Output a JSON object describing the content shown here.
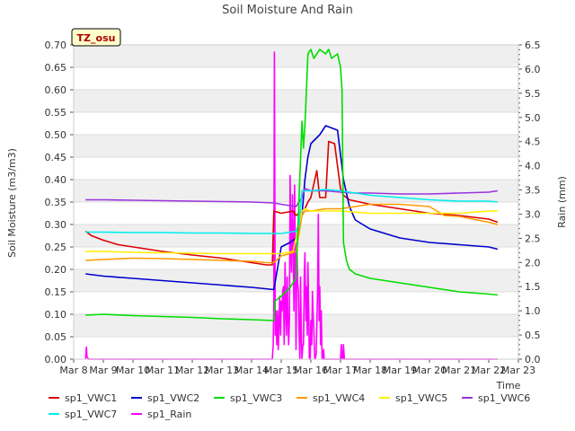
{
  "chart_data": {
    "type": "line",
    "title": "Soil Moisture And Rain",
    "site_label": "TZ_osu",
    "ylabel": "Soil Moisture (m3/m3)",
    "y2label": "Rain (mm)",
    "xlabel": "Time",
    "ylim": [
      0,
      0.7
    ],
    "y2lim": [
      0,
      6.5
    ],
    "xlim": [
      8,
      23
    ],
    "x_unit": "day of March",
    "x_ticks": [
      8,
      9,
      10,
      11,
      12,
      13,
      14,
      15,
      16,
      17,
      18,
      19,
      20,
      21,
      22,
      23
    ],
    "x_tick_labels": [
      "Mar 8",
      "Mar 9",
      "Mar 10",
      "Mar 11",
      "Mar 12",
      "Mar 13",
      "Mar 14",
      "Mar 15",
      "Mar 16",
      "Mar 17",
      "Mar 18",
      "Mar 19",
      "Mar 20",
      "Mar 21",
      "Mar 22",
      "Mar 23"
    ],
    "y_ticks": [
      0.0,
      0.05,
      0.1,
      0.15,
      0.2,
      0.25,
      0.3,
      0.35,
      0.4,
      0.45,
      0.5,
      0.55,
      0.6,
      0.65,
      0.7
    ],
    "y_tick_labels": [
      "0.00",
      "0.05",
      "0.10",
      "0.15",
      "0.20",
      "0.25",
      "0.30",
      "0.35",
      "0.40",
      "0.45",
      "0.50",
      "0.55",
      "0.60",
      "0.65",
      "0.70"
    ],
    "y2_ticks": [
      0.0,
      0.5,
      1.0,
      1.5,
      2.0,
      2.5,
      3.0,
      3.5,
      4.0,
      4.5,
      5.0,
      5.5,
      6.0,
      6.5
    ],
    "y2_tick_labels": [
      "0.0",
      "0.5",
      "1.0",
      "1.5",
      "2.0",
      "2.5",
      "3.0",
      "3.5",
      "4.0",
      "4.5",
      "5.0",
      "5.5",
      "6.0",
      "6.5"
    ],
    "grid": "horizontal bands",
    "legend_position": "bottom",
    "series": [
      {
        "name": "sp1_VWC1",
        "color": "#dd0000",
        "axis": "left",
        "x": [
          8.4,
          8.6,
          9.0,
          9.5,
          10.0,
          10.5,
          11.0,
          12.0,
          13.0,
          13.5,
          14.0,
          14.5,
          14.7,
          14.75,
          15.0,
          15.4,
          15.5,
          15.7,
          15.8,
          15.9,
          16.0,
          16.2,
          16.3,
          16.5,
          16.6,
          16.8,
          17.0,
          17.1,
          17.3,
          18.0,
          19.0,
          20.0,
          21.0,
          22.0,
          22.3
        ],
        "y": [
          0.285,
          0.275,
          0.265,
          0.255,
          0.25,
          0.245,
          0.24,
          0.232,
          0.225,
          0.22,
          0.215,
          0.21,
          0.21,
          0.33,
          0.325,
          0.33,
          0.32,
          0.33,
          0.335,
          0.35,
          0.36,
          0.42,
          0.36,
          0.36,
          0.485,
          0.48,
          0.38,
          0.365,
          0.355,
          0.345,
          0.335,
          0.325,
          0.32,
          0.312,
          0.305
        ]
      },
      {
        "name": "sp1_VWC2",
        "color": "#0000cc",
        "axis": "left",
        "x": [
          8.4,
          9.0,
          10.0,
          11.0,
          12.0,
          13.0,
          14.0,
          14.75,
          15.0,
          15.3,
          15.5,
          15.7,
          15.8,
          15.9,
          16.0,
          16.3,
          16.5,
          16.7,
          16.9,
          17.1,
          17.3,
          17.5,
          18.0,
          19.0,
          20.0,
          21.0,
          22.0,
          22.3
        ],
        "y": [
          0.19,
          0.185,
          0.18,
          0.175,
          0.17,
          0.165,
          0.16,
          0.155,
          0.25,
          0.26,
          0.27,
          0.32,
          0.4,
          0.45,
          0.48,
          0.5,
          0.52,
          0.515,
          0.51,
          0.4,
          0.34,
          0.31,
          0.29,
          0.27,
          0.26,
          0.255,
          0.25,
          0.245
        ]
      },
      {
        "name": "sp1_VWC3",
        "color": "#00dd00",
        "axis": "left",
        "x": [
          8.4,
          9.0,
          10.0,
          11.0,
          12.0,
          13.0,
          14.0,
          14.75,
          14.8,
          15.0,
          15.3,
          15.5,
          15.7,
          15.75,
          15.8,
          15.85,
          15.9,
          16.0,
          16.1,
          16.3,
          16.5,
          16.6,
          16.7,
          16.9,
          17.0,
          17.05,
          17.1,
          17.2,
          17.3,
          17.5,
          18.0,
          19.0,
          20.0,
          21.0,
          22.0,
          22.3
        ],
        "y": [
          0.098,
          0.1,
          0.097,
          0.095,
          0.093,
          0.09,
          0.088,
          0.086,
          0.13,
          0.14,
          0.16,
          0.18,
          0.53,
          0.47,
          0.52,
          0.6,
          0.68,
          0.69,
          0.67,
          0.69,
          0.68,
          0.69,
          0.67,
          0.68,
          0.65,
          0.6,
          0.26,
          0.22,
          0.2,
          0.19,
          0.18,
          0.17,
          0.16,
          0.15,
          0.145,
          0.143
        ]
      },
      {
        "name": "sp1_VWC4",
        "color": "#ff9900",
        "axis": "left",
        "x": [
          8.4,
          9.0,
          10.0,
          11.0,
          12.0,
          13.0,
          14.0,
          14.5,
          14.75,
          15.0,
          15.3,
          15.5,
          15.6,
          15.7,
          15.8,
          16.0,
          16.5,
          17.0,
          17.5,
          18.0,
          19.0,
          20.0,
          20.5,
          21.0,
          22.0,
          22.3
        ],
        "y": [
          0.22,
          0.222,
          0.225,
          0.224,
          0.222,
          0.22,
          0.218,
          0.215,
          0.215,
          0.23,
          0.235,
          0.24,
          0.28,
          0.32,
          0.33,
          0.33,
          0.335,
          0.335,
          0.34,
          0.345,
          0.345,
          0.34,
          0.32,
          0.318,
          0.305,
          0.3
        ]
      },
      {
        "name": "sp1_VWC5",
        "color": "#ffee00",
        "axis": "left",
        "x": [
          8.4,
          9.0,
          10.0,
          11.0,
          12.0,
          13.0,
          14.0,
          14.75,
          15.0,
          15.4,
          15.6,
          15.7,
          15.8,
          16.0,
          16.5,
          17.0,
          18.0,
          19.0,
          20.0,
          21.0,
          22.0,
          22.3
        ],
        "y": [
          0.24,
          0.24,
          0.238,
          0.237,
          0.236,
          0.235,
          0.235,
          0.235,
          0.235,
          0.24,
          0.3,
          0.33,
          0.335,
          0.33,
          0.33,
          0.33,
          0.325,
          0.325,
          0.325,
          0.325,
          0.33,
          0.33
        ]
      },
      {
        "name": "sp1_VWC6",
        "color": "#9933dd",
        "axis": "left",
        "x": [
          8.4,
          9.0,
          10.0,
          11.0,
          12.0,
          13.0,
          14.0,
          14.75,
          15.0,
          15.5,
          15.7,
          15.8,
          16.0,
          16.5,
          17.0,
          17.5,
          18.0,
          19.0,
          20.0,
          21.0,
          22.0,
          22.3
        ],
        "y": [
          0.355,
          0.355,
          0.354,
          0.353,
          0.352,
          0.351,
          0.35,
          0.348,
          0.345,
          0.34,
          0.36,
          0.38,
          0.375,
          0.375,
          0.372,
          0.37,
          0.37,
          0.368,
          0.368,
          0.37,
          0.372,
          0.375
        ]
      },
      {
        "name": "sp1_VWC7",
        "color": "#00eeee",
        "axis": "left",
        "x": [
          8.4,
          9.0,
          10.0,
          11.0,
          12.0,
          13.0,
          14.0,
          14.75,
          15.0,
          15.5,
          15.6,
          15.7,
          16.0,
          16.5,
          17.0,
          17.5,
          18.0,
          19.0,
          20.0,
          21.0,
          22.0,
          22.3
        ],
        "y": [
          0.283,
          0.283,
          0.282,
          0.282,
          0.281,
          0.281,
          0.28,
          0.28,
          0.28,
          0.285,
          0.3,
          0.375,
          0.375,
          0.378,
          0.375,
          0.37,
          0.365,
          0.36,
          0.355,
          0.352,
          0.352,
          0.35
        ]
      },
      {
        "name": "sp1_Rain",
        "color": "#ff00ff",
        "axis": "right",
        "x": [
          8.4,
          8.43,
          8.45,
          8.5,
          14.7,
          14.73,
          14.75,
          14.77,
          14.8,
          14.82,
          14.85,
          14.88,
          14.9,
          14.93,
          14.95,
          14.98,
          15.0,
          15.03,
          15.05,
          15.08,
          15.1,
          15.13,
          15.15,
          15.18,
          15.2,
          15.23,
          15.25,
          15.28,
          15.3,
          15.33,
          15.35,
          15.38,
          15.4,
          15.43,
          15.45,
          15.48,
          15.5,
          15.53,
          15.55,
          15.58,
          15.6,
          15.63,
          15.65,
          15.68,
          15.7,
          15.73,
          15.75,
          15.78,
          15.8,
          15.83,
          15.85,
          15.88,
          15.9,
          15.93,
          15.95,
          15.98,
          16.0,
          16.03,
          16.05,
          16.08,
          16.1,
          16.13,
          16.15,
          16.18,
          16.2,
          16.23,
          16.25,
          16.28,
          16.3,
          16.33,
          16.35,
          16.38,
          16.4,
          16.43,
          16.45,
          16.48,
          16.5,
          16.53,
          16.55,
          16.58,
          16.6,
          16.63,
          16.65,
          16.68,
          16.7,
          16.73,
          16.75,
          16.78,
          16.8,
          16.83,
          16.85,
          16.88,
          16.9,
          16.93,
          16.95,
          16.98,
          17.0,
          17.03,
          17.05,
          17.08,
          17.1,
          17.13,
          17.15,
          17.2,
          22.3
        ],
        "y": [
          0.0,
          0.25,
          0.05,
          0.0,
          0.0,
          0.3,
          1.2,
          6.35,
          0.5,
          1.0,
          0.3,
          1.0,
          0.2,
          0.8,
          1.3,
          0.5,
          1.2,
          1.0,
          1.4,
          1.5,
          0.3,
          2.0,
          1.0,
          0.5,
          1.7,
          0.8,
          0.3,
          0.9,
          3.8,
          2.1,
          1.8,
          3.4,
          2.5,
          1.0,
          3.6,
          2.0,
          0.2,
          2.4,
          1.6,
          1.4,
          0.6,
          0.0,
          1.7,
          0.5,
          0.0,
          0.3,
          0.3,
          1.7,
          2.2,
          0.8,
          1.5,
          0.5,
          2.0,
          0.9,
          0.0,
          0.0,
          0.8,
          0.3,
          1.4,
          0.9,
          0.6,
          0.0,
          0.0,
          0.1,
          0.7,
          1.5,
          3.0,
          0.8,
          1.5,
          0.3,
          1.0,
          0.0,
          0.0,
          0.2,
          0.0,
          0.0,
          0.0,
          0.0,
          0.0,
          0.0,
          0.0,
          0.0,
          0.0,
          0.0,
          0.0,
          0.0,
          0.0,
          0.0,
          0.0,
          0.0,
          0.0,
          0.0,
          0.0,
          0.0,
          0.0,
          0.0,
          0.0,
          0.3,
          0.0,
          0.0,
          0.3,
          0.0,
          0.0,
          0.0,
          0.0
        ]
      }
    ]
  }
}
